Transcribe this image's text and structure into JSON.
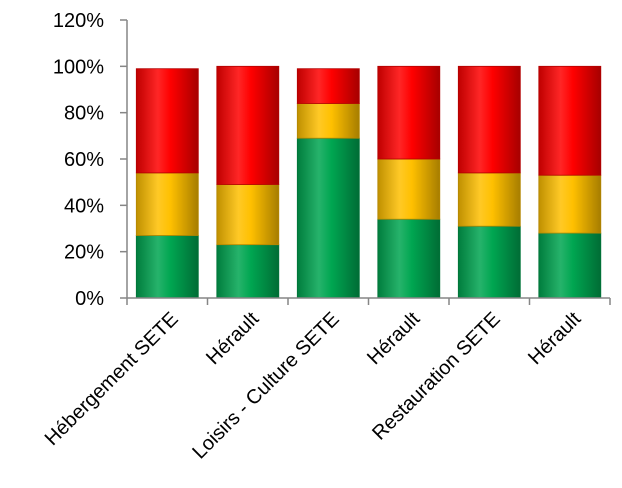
{
  "chart_data": {
    "type": "bar",
    "stacked": true,
    "categories": [
      "Hébergement SETE",
      "Hérault",
      "Loisirs - Culture SETE",
      "Hérault",
      "Restauration SETE",
      "Hérault"
    ],
    "series": [
      {
        "color": "#00A651",
        "values": [
          27,
          23,
          69,
          34,
          31,
          28
        ]
      },
      {
        "color": "#FFC000",
        "values": [
          27,
          26,
          15,
          26,
          23,
          25
        ]
      },
      {
        "color": "#FF0000",
        "values": [
          45,
          51,
          15,
          40,
          46,
          47
        ]
      }
    ],
    "yticks": [
      "0%",
      "20%",
      "40%",
      "60%",
      "80%",
      "100%",
      "120%"
    ],
    "ylim": [
      0,
      120
    ],
    "grid": false,
    "legend": "none"
  }
}
